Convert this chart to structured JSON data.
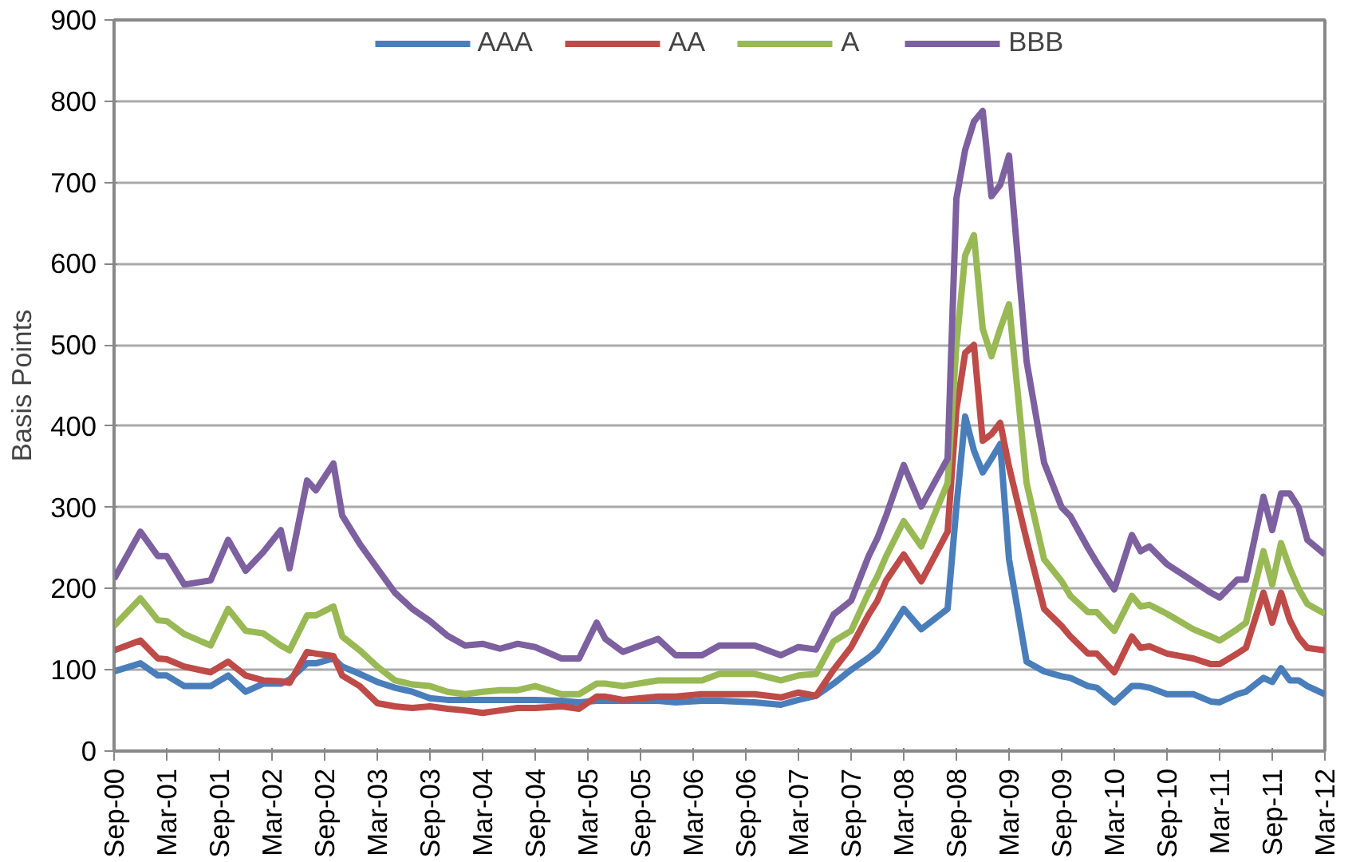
{
  "chart_data": {
    "type": "line",
    "ylabel": "Basis Points",
    "x": [
      "2000-09",
      "2000-12",
      "2001-02",
      "2001-03",
      "2001-05",
      "2001-08",
      "2001-10",
      "2001-12",
      "2002-02",
      "2002-04",
      "2002-05",
      "2002-07",
      "2002-08",
      "2002-10",
      "2002-11",
      "2003-01",
      "2003-03",
      "2003-05",
      "2003-07",
      "2003-09",
      "2003-11",
      "2004-01",
      "2004-03",
      "2004-05",
      "2004-07",
      "2004-09",
      "2004-12",
      "2005-02",
      "2005-04",
      "2005-05",
      "2005-07",
      "2005-11",
      "2006-01",
      "2006-04",
      "2006-06",
      "2006-10",
      "2007-01",
      "2007-03",
      "2007-05",
      "2007-07",
      "2007-09",
      "2007-11",
      "2007-12",
      "2008-01",
      "2008-03",
      "2008-05",
      "2008-08",
      "2008-09",
      "2008-10",
      "2008-11",
      "2008-12",
      "2009-01",
      "2009-02",
      "2009-03",
      "2009-05",
      "2009-07",
      "2009-09",
      "2009-10",
      "2009-12",
      "2010-01",
      "2010-03",
      "2010-05",
      "2010-06",
      "2010-07",
      "2010-09",
      "2010-12",
      "2011-02",
      "2011-03",
      "2011-05",
      "2011-06",
      "2011-08",
      "2011-09",
      "2011-10",
      "2011-11",
      "2011-12",
      "2012-01",
      "2012-03"
    ],
    "series": [
      {
        "name": "AAA",
        "color": "#4a7ebb",
        "values": [
          98,
          108,
          93,
          93,
          80,
          80,
          93,
          73,
          83,
          83,
          88,
          108,
          108,
          114,
          104,
          95,
          85,
          78,
          73,
          65,
          63,
          63,
          63,
          63,
          63,
          63,
          62,
          60,
          62,
          62,
          62,
          62,
          60,
          62,
          62,
          60,
          57,
          63,
          68,
          83,
          100,
          115,
          124,
          140,
          175,
          150,
          175,
          300,
          412,
          370,
          343,
          360,
          378,
          236,
          110,
          98,
          92,
          90,
          80,
          78,
          60,
          80,
          80,
          78,
          70,
          70,
          61,
          60,
          70,
          73,
          90,
          85,
          102,
          87,
          87,
          80,
          70
        ]
      },
      {
        "name": "AA",
        "color": "#be4b48",
        "values": [
          124,
          136,
          114,
          113,
          104,
          97,
          110,
          93,
          87,
          86,
          84,
          122,
          120,
          117,
          93,
          80,
          59,
          55,
          53,
          55,
          52,
          50,
          47,
          50,
          53,
          53,
          55,
          52,
          67,
          67,
          63,
          67,
          67,
          70,
          70,
          70,
          66,
          72,
          68,
          100,
          128,
          168,
          185,
          210,
          242,
          209,
          270,
          420,
          490,
          500,
          382,
          390,
          404,
          350,
          260,
          175,
          154,
          141,
          120,
          120,
          97,
          141,
          127,
          129,
          120,
          114,
          107,
          107,
          120,
          127,
          195,
          158,
          195,
          161,
          140,
          127,
          124
        ]
      },
      {
        "name": "A",
        "color": "#98b954",
        "values": [
          154,
          188,
          161,
          160,
          144,
          130,
          175,
          148,
          145,
          130,
          124,
          167,
          167,
          178,
          141,
          124,
          104,
          87,
          82,
          80,
          73,
          70,
          73,
          75,
          75,
          80,
          70,
          70,
          83,
          83,
          80,
          87,
          87,
          87,
          95,
          95,
          87,
          93,
          95,
          135,
          148,
          195,
          215,
          240,
          283,
          252,
          330,
          500,
          610,
          635,
          520,
          486,
          520,
          550,
          330,
          236,
          209,
          191,
          171,
          171,
          148,
          191,
          178,
          180,
          169,
          150,
          141,
          136,
          150,
          158,
          246,
          205,
          256,
          225,
          200,
          181,
          169
        ]
      },
      {
        "name": "BBB",
        "color": "#7d60a0",
        "values": [
          212,
          270,
          240,
          240,
          205,
          210,
          260,
          222,
          245,
          272,
          225,
          333,
          321,
          354,
          290,
          255,
          225,
          195,
          175,
          160,
          142,
          130,
          132,
          126,
          132,
          128,
          114,
          114,
          158,
          138,
          122,
          138,
          118,
          118,
          130,
          130,
          118,
          128,
          125,
          168,
          185,
          240,
          262,
          290,
          352,
          301,
          360,
          680,
          740,
          775,
          788,
          683,
          697,
          733,
          480,
          355,
          300,
          289,
          250,
          232,
          199,
          266,
          246,
          252,
          230,
          209,
          195,
          189,
          211,
          211,
          313,
          272,
          317,
          317,
          300,
          260,
          242
        ]
      }
    ],
    "xlim": [
      "2000-09",
      "2012-03"
    ],
    "xticks": [
      {
        "value": "2000-09",
        "label": "Sep-00"
      },
      {
        "value": "2001-03",
        "label": "Mar-01"
      },
      {
        "value": "2001-09",
        "label": "Sep-01"
      },
      {
        "value": "2002-03",
        "label": "Mar-02"
      },
      {
        "value": "2002-09",
        "label": "Sep-02"
      },
      {
        "value": "2003-03",
        "label": "Mar-03"
      },
      {
        "value": "2003-09",
        "label": "Sep-03"
      },
      {
        "value": "2004-03",
        "label": "Mar-04"
      },
      {
        "value": "2004-09",
        "label": "Sep-04"
      },
      {
        "value": "2005-03",
        "label": "Mar-05"
      },
      {
        "value": "2005-09",
        "label": "Sep-05"
      },
      {
        "value": "2006-03",
        "label": "Mar-06"
      },
      {
        "value": "2006-09",
        "label": "Sep-06"
      },
      {
        "value": "2007-03",
        "label": "Mar-07"
      },
      {
        "value": "2007-09",
        "label": "Sep-07"
      },
      {
        "value": "2008-03",
        "label": "Mar-08"
      },
      {
        "value": "2008-09",
        "label": "Sep-08"
      },
      {
        "value": "2009-03",
        "label": "Mar-09"
      },
      {
        "value": "2009-09",
        "label": "Sep-09"
      },
      {
        "value": "2010-03",
        "label": "Mar-10"
      },
      {
        "value": "2010-09",
        "label": "Sep-10"
      },
      {
        "value": "2011-03",
        "label": "Mar-11"
      },
      {
        "value": "2011-09",
        "label": "Sep-11"
      },
      {
        "value": "2012-03",
        "label": "Mar-12"
      }
    ],
    "ylim": [
      0,
      900
    ],
    "yticks": [
      0,
      100,
      200,
      300,
      400,
      500,
      600,
      700,
      800,
      900
    ],
    "grid": "y",
    "legend": "top",
    "marker": "none",
    "line_style": "solid"
  }
}
